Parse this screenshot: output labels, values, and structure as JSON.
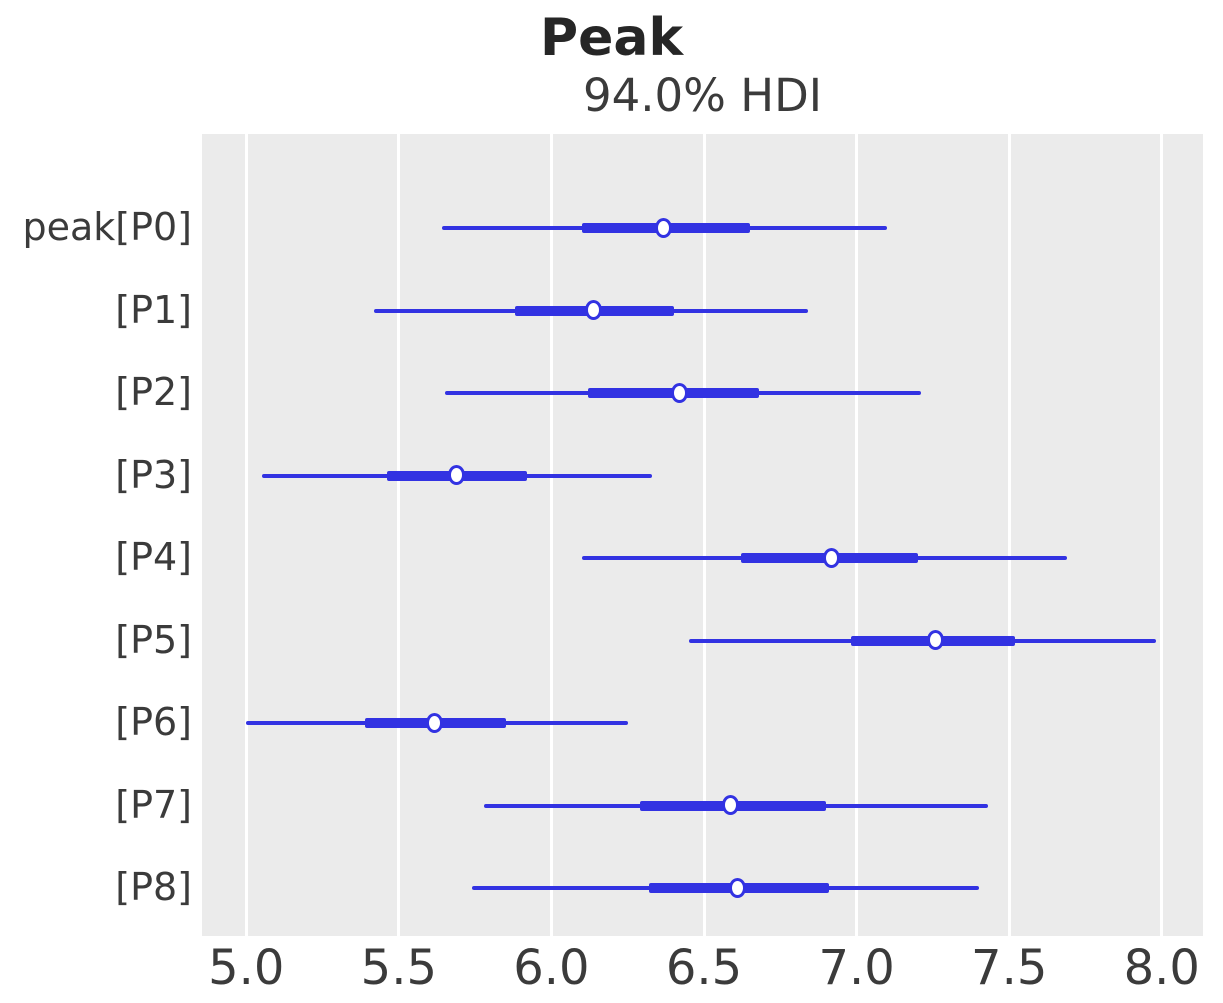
{
  "chart_data": {
    "type": "forest",
    "title": "Peak",
    "subtitle": "94.0% HDI",
    "hdi_probability_percent": 94.0,
    "xlabel": "",
    "xlim": [
      4.855,
      8.135
    ],
    "x_tick_values": [
      5.0,
      5.5,
      6.0,
      6.5,
      7.0,
      7.5,
      8.0
    ],
    "x_tick_labels": [
      "5.0",
      "5.5",
      "6.0",
      "6.5",
      "7.0",
      "7.5",
      "8.0"
    ],
    "grid": "vertical-white-lines",
    "legend": "none",
    "rows": [
      {
        "label": "peak[P0]",
        "hdi_low": 5.64,
        "hdi_high": 7.1,
        "iqr_low": 6.1,
        "iqr_high": 6.65,
        "median": 6.37
      },
      {
        "label": "[P1]",
        "hdi_low": 5.42,
        "hdi_high": 6.84,
        "iqr_low": 5.88,
        "iqr_high": 6.4,
        "median": 6.14
      },
      {
        "label": "[P2]",
        "hdi_low": 5.65,
        "hdi_high": 7.21,
        "iqr_low": 6.12,
        "iqr_high": 6.68,
        "median": 6.42
      },
      {
        "label": "[P3]",
        "hdi_low": 5.05,
        "hdi_high": 6.33,
        "iqr_low": 5.46,
        "iqr_high": 5.92,
        "median": 5.69
      },
      {
        "label": "[P4]",
        "hdi_low": 6.1,
        "hdi_high": 7.69,
        "iqr_low": 6.62,
        "iqr_high": 7.2,
        "median": 6.92
      },
      {
        "label": "[P5]",
        "hdi_low": 6.45,
        "hdi_high": 7.98,
        "iqr_low": 6.98,
        "iqr_high": 7.52,
        "median": 7.26
      },
      {
        "label": "[P6]",
        "hdi_low": 5.0,
        "hdi_high": 6.25,
        "iqr_low": 5.39,
        "iqr_high": 5.85,
        "median": 5.62
      },
      {
        "label": "[P7]",
        "hdi_low": 5.78,
        "hdi_high": 7.43,
        "iqr_low": 6.29,
        "iqr_high": 6.9,
        "median": 6.59
      },
      {
        "label": "[P8]",
        "hdi_low": 5.74,
        "hdi_high": 7.4,
        "iqr_low": 6.32,
        "iqr_high": 6.91,
        "median": 6.61
      }
    ],
    "colors": {
      "interval": "#3232e2",
      "marker_fill": "#ffffff",
      "plot_background": "#ebebeb",
      "grid": "#ffffff",
      "title_text": "#262626",
      "tick_text": "#3b3b3b"
    }
  }
}
